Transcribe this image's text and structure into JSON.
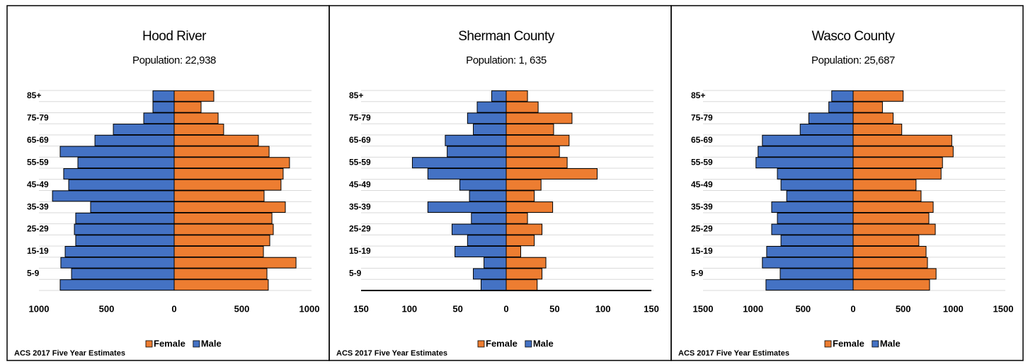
{
  "chart_data": [
    {
      "type": "pyramid",
      "title": "Hood River",
      "subtitle": "Population: 22,938",
      "footnote": "ACS 2017 Five Year Estimates",
      "categories": [
        "85+",
        null,
        "75-79",
        null,
        "65-69",
        null,
        "55-59",
        null,
        "45-49",
        null,
        "35-39",
        null,
        "25-29",
        null,
        "15-19",
        null,
        "5-9",
        null
      ],
      "series": [
        {
          "name": "Female",
          "color": "#ed7d31",
          "values": [
            293,
            199,
            325,
            366,
            623,
            702,
            853,
            806,
            790,
            665,
            822,
            723,
            733,
            707,
            660,
            901,
            686,
            696
          ]
        },
        {
          "name": "Male",
          "color": "#4472c4",
          "values": [
            -157,
            -157,
            -225,
            -450,
            -586,
            -843,
            -712,
            -817,
            -780,
            -900,
            -618,
            -728,
            -738,
            -728,
            -806,
            -838,
            -759,
            -843
          ]
        }
      ],
      "xlim": [
        -1000,
        1000
      ],
      "xticks": [
        {
          "value": -1000,
          "label": "1000"
        },
        {
          "value": -500,
          "label": "500"
        },
        0,
        500,
        1000
      ],
      "grid": true,
      "x_axis_line": false,
      "legend": "bottom"
    },
    {
      "type": "pyramid",
      "title": "Sherman County",
      "subtitle": "Population: 1, 635",
      "footnote": "ACS 2017 Five Year Estimates",
      "categories": [
        "85+",
        null,
        "75-79",
        null,
        "65-69",
        null,
        "55-59",
        null,
        "45-49",
        null,
        "35-39",
        null,
        "25-29",
        null,
        "15-19",
        null,
        "5-9",
        null
      ],
      "series": [
        {
          "name": "Female",
          "color": "#ed7d31",
          "values": [
            22,
            33,
            68,
            49,
            65,
            55,
            63,
            94,
            36,
            29,
            48,
            22,
            37,
            29,
            15,
            41,
            37,
            32
          ]
        },
        {
          "name": "Male",
          "color": "#4472c4",
          "values": [
            -15,
            -30,
            -40,
            -34,
            -63,
            -61,
            -97,
            -81,
            -48,
            -38,
            -81,
            -36,
            -56,
            -40,
            -53,
            -23,
            -34,
            -26
          ]
        }
      ],
      "xlim": [
        -150,
        150
      ],
      "xticks": [
        {
          "value": -150,
          "label": "150"
        },
        {
          "value": -100,
          "label": "100"
        },
        {
          "value": -50,
          "label": "50"
        },
        0,
        50,
        100,
        150
      ],
      "grid": true,
      "x_axis_line": true,
      "legend": "bottom"
    },
    {
      "type": "pyramid",
      "title": "Wasco County",
      "subtitle": "Population: 25,687",
      "footnote": "ACS 2017 Five Year Estimates",
      "categories": [
        "85+",
        null,
        "75-79",
        null,
        "65-69",
        null,
        "55-59",
        null,
        "45-49",
        null,
        "35-39",
        null,
        "25-29",
        null,
        "15-19",
        null,
        "5-9",
        null
      ],
      "series": [
        {
          "name": "Female",
          "color": "#ed7d31",
          "values": [
            500,
            293,
            400,
            486,
            986,
            1000,
            893,
            879,
            629,
            679,
            800,
            757,
            821,
            657,
            729,
            743,
            829,
            764
          ]
        },
        {
          "name": "Male",
          "color": "#4472c4",
          "values": [
            -214,
            -243,
            -443,
            -529,
            -907,
            -950,
            -971,
            -757,
            -721,
            -664,
            -814,
            -757,
            -814,
            -721,
            -864,
            -907,
            -729,
            -871
          ]
        }
      ],
      "xlim": [
        -1500,
        1500
      ],
      "xticks": [
        {
          "value": -1500,
          "label": "1500"
        },
        {
          "value": -1000,
          "label": "1000"
        },
        {
          "value": -500,
          "label": "500"
        },
        0,
        500,
        1000,
        1500
      ],
      "grid": true,
      "x_axis_line": false,
      "legend": "bottom"
    }
  ]
}
